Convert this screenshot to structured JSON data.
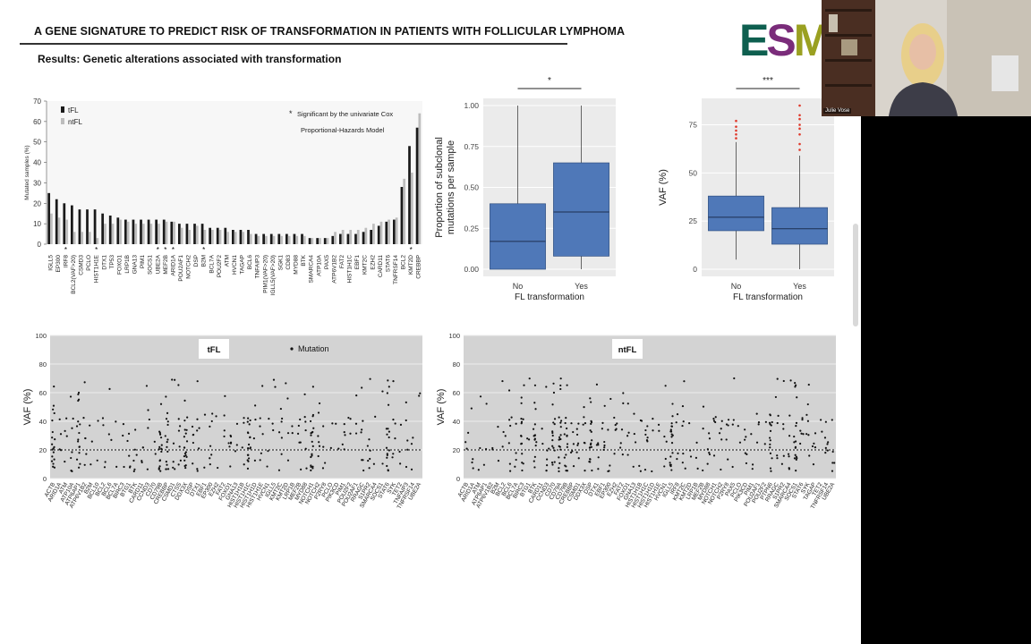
{
  "slide": {
    "title": "A GENE SIGNATURE TO PREDICT RISK OF TRANSFORMATION IN PATIENTS WITH FOLLICULAR LYMPHOMA",
    "subtitle": "Results: Genetic alterations associated with transformation",
    "logo_text": "ESMO"
  },
  "webcam": {
    "name": "Julie Vose"
  },
  "chart_data": [
    {
      "type": "bar",
      "ylabel": "Mutated samples (%)",
      "ylim": [
        0,
        70
      ],
      "yticks": [
        0,
        10,
        20,
        30,
        40,
        50,
        60,
        70
      ],
      "legend": [
        "tFL",
        "ntFL"
      ],
      "note": "Significant by the univariate Cox Proportional-Hazards Model",
      "note_lines": [
        "Significant by the univariate Cox",
        "Proportional-Hazards Model"
      ],
      "categories": [
        "IGLL5",
        "EP300",
        "IRF8",
        "BCL2(VAF>20)",
        "CSMD3",
        "PCLO",
        "HIST1H1E",
        "DTX1",
        "TP53",
        "FOXO1",
        "LRP1B",
        "GNA13",
        "PIM1",
        "SOCS1",
        "UBE2A",
        "MEF2B",
        "ARID1A",
        "POU2AF1",
        "NOTCH2",
        "DSP",
        "B2M",
        "BCL7A",
        "POU2F2",
        "ATM",
        "HVCN1",
        "TAGAP",
        "BCL6",
        "TNFAIP3",
        "PIM1(VAF>20)",
        "IGLL5(VAF>20)",
        "SGK1",
        "CD83",
        "MYD88",
        "BTK",
        "SMARCA4",
        "ATP10A",
        "PAX5",
        "ATP6V1B2",
        "FAT2",
        "HIST1H1C",
        "EBF1",
        "KMT2C",
        "EZH2",
        "CARD11",
        "STAT6",
        "TNFRSF14",
        "BCL2",
        "KMT2D",
        "CREBBP"
      ],
      "significant": [
        "IRF8",
        "HIST1H1E",
        "UBE2A",
        "MEF2B",
        "ARID1A",
        "B2M",
        "KMT2D"
      ],
      "series": [
        {
          "name": "tFL",
          "values": [
            25,
            22,
            20,
            19,
            17,
            17,
            17,
            15,
            14,
            13,
            12,
            12,
            12,
            12,
            12,
            12,
            11,
            10,
            10,
            10,
            10,
            8,
            8,
            8,
            7,
            7,
            7,
            5,
            5,
            5,
            5,
            5,
            5,
            5,
            3,
            3,
            3,
            4,
            5,
            5,
            5,
            6,
            7,
            9,
            11,
            12,
            28,
            48,
            57
          ]
        },
        {
          "name": "ntFL",
          "values": [
            15,
            13,
            12,
            6,
            6,
            6,
            3,
            10,
            10,
            12,
            11,
            10,
            10,
            10,
            10,
            11,
            11,
            8,
            7,
            9,
            7,
            7,
            7,
            6,
            6,
            6,
            5,
            4,
            4,
            4,
            4,
            4,
            4,
            4,
            3,
            3,
            3,
            6,
            7,
            7,
            7,
            8,
            10,
            11,
            12,
            13,
            32,
            35,
            64
          ]
        }
      ]
    },
    {
      "type": "box",
      "xlabel": "FL transformation",
      "ylabel": "Proportion of subclonal mutations per sample",
      "ylabel_lines": [
        "Proportion of subclonal",
        "mutations per sample"
      ],
      "significance": "*",
      "ylim": [
        0,
        1
      ],
      "yticks": [
        "0.00",
        "0.25",
        "0.50",
        "0.75",
        "1.00"
      ],
      "categories": [
        "No",
        "Yes"
      ],
      "boxes": [
        {
          "min": 0.0,
          "q1": 0.0,
          "median": 0.17,
          "q3": 0.4,
          "max": 1.0
        },
        {
          "min": 0.0,
          "q1": 0.08,
          "median": 0.35,
          "q3": 0.65,
          "max": 1.0
        }
      ]
    },
    {
      "type": "box",
      "xlabel": "FL transformation",
      "ylabel": "VAF (%)",
      "significance": "***",
      "ylim": [
        0,
        85
      ],
      "yticks": [
        "0",
        "25",
        "50",
        "75"
      ],
      "categories": [
        "No",
        "Yes"
      ],
      "boxes": [
        {
          "min": 5,
          "q1": 20,
          "median": 27,
          "q3": 38,
          "max": 66,
          "outliers": [
            68,
            70,
            72,
            74,
            77
          ]
        },
        {
          "min": 0,
          "q1": 13,
          "median": 21,
          "q3": 32,
          "max": 59,
          "outliers": [
            62,
            65,
            70,
            73,
            75,
            78,
            80,
            85
          ]
        }
      ]
    },
    {
      "type": "scatter",
      "panel_label": "tFL",
      "legend": "Mutation",
      "ylabel": "VAF (%)",
      "ylim": [
        0,
        100
      ],
      "yticks": [
        0,
        20,
        40,
        60,
        80,
        100
      ],
      "reference_line": 20,
      "genes": [
        "ACTB",
        "ARID1A",
        "ATM",
        "ATP10A",
        "ATP6AP1",
        "ATP6V1B2",
        "B2M",
        "BCL10",
        "BCL2",
        "BCL6",
        "BCL7A",
        "BIRC3",
        "BTG1",
        "BTK",
        "CARD11",
        "CCND3",
        "CD70",
        "CD79B",
        "CREBBP",
        "CSMD1",
        "CTSS",
        "DDX3X",
        "DSP",
        "DTX1",
        "EBF1",
        "EP300",
        "EZH2",
        "FAT2",
        "FOXO1",
        "GNA13",
        "HIST1H1B",
        "HIST1H1C",
        "HIST1H1D",
        "HIST1H1E",
        "HVCN1",
        "IGLL5",
        "KMT2C",
        "KMT2D",
        "LRP1B",
        "MEF2B",
        "MYD88",
        "NOTCH1",
        "NOTCH2",
        "P2RY8",
        "PCLO",
        "PIK3CD",
        "PIM1",
        "POU2F2",
        "POU2AF1",
        "RRAGC",
        "S1PR2",
        "SMARCA4",
        "SOCS1",
        "STAT6",
        "SYK",
        "TET2",
        "TNFAIP3",
        "TNFRSF14",
        "UBE2A"
      ]
    },
    {
      "type": "scatter",
      "panel_label": "ntFL",
      "ylabel": "VAF (%)",
      "ylim": [
        0,
        100
      ],
      "yticks": [
        0,
        20,
        40,
        60,
        80,
        100
      ],
      "reference_line": 20,
      "genes": [
        "ACTB",
        "ARID1A",
        "ATM",
        "ATP6AP1",
        "ATP6V1B2",
        "B2M",
        "BCL2",
        "BCL6",
        "BCL7A",
        "BIRC3",
        "BTG1",
        "BTK",
        "CARD11",
        "CCND3",
        "CD70",
        "CD79A",
        "CD79B",
        "CREBBP",
        "CSMD1",
        "DDX3X",
        "DSP",
        "DTX1",
        "EBF1",
        "EP300",
        "EZH2",
        "FAT2",
        "FOXO1",
        "GNA13",
        "HIST1H1B",
        "HIST1H1C",
        "HIST1H1D",
        "HIST1H1E",
        "HVCN1",
        "IGLL5",
        "IRF8",
        "KMT2C",
        "KMT2D",
        "LRP1B",
        "MEF2B",
        "MYD88",
        "NOTCH1",
        "NOTCH2",
        "P2RY8",
        "PAX5",
        "PCLO",
        "PIK3CD",
        "PIM1",
        "POU2AF1",
        "POU2F2",
        "PTPN6",
        "RRAGC",
        "S1PR2",
        "SMARCA4",
        "SOCS1",
        "STAT6",
        "SYK",
        "TAGAP",
        "TET2",
        "TNFRSF14",
        "UBE2A"
      ]
    }
  ]
}
